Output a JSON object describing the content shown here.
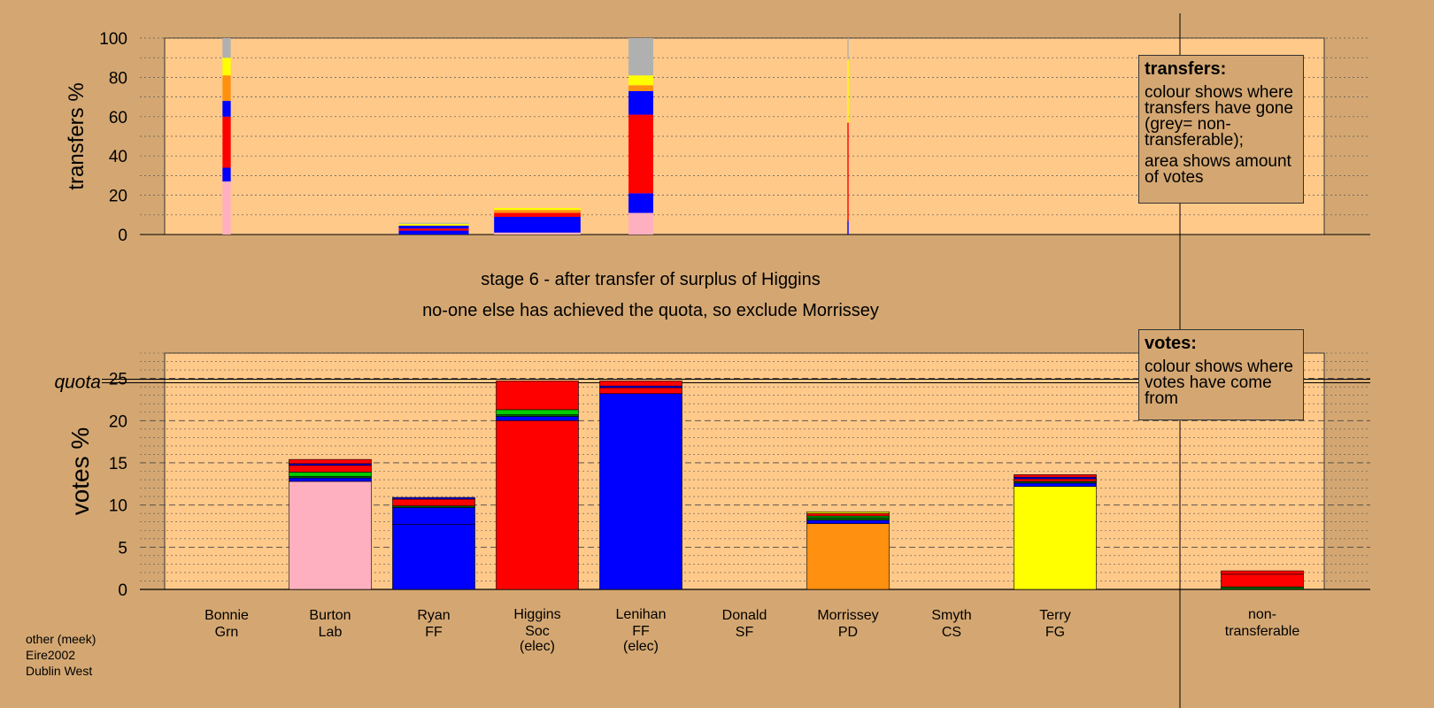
{
  "chart_data": {
    "type": "bar",
    "colors": {
      "Grn": "#00cc00",
      "Lab": "#ffb0c0",
      "FF": "#0000ff",
      "Soc": "#ff0000",
      "SF": "#006400",
      "PD": "#ff9010",
      "CS": "#7030a0",
      "FG": "#ffff00",
      "non-transferable": "#b0b0b0"
    },
    "candidates": [
      {
        "name": "Bonnie",
        "party": "Grn",
        "status": ""
      },
      {
        "name": "Burton",
        "party": "Lab",
        "status": ""
      },
      {
        "name": "Ryan",
        "party": "FF",
        "status": ""
      },
      {
        "name": "Higgins",
        "party": "Soc",
        "status": "(elec)"
      },
      {
        "name": "Lenihan",
        "party": "FF",
        "status": "(elec)"
      },
      {
        "name": "Donald",
        "party": "SF",
        "status": ""
      },
      {
        "name": "Morrissey",
        "party": "PD",
        "status": ""
      },
      {
        "name": "Smyth",
        "party": "CS",
        "status": ""
      },
      {
        "name": "Terry",
        "party": "FG",
        "status": ""
      }
    ],
    "nontransferable_label": [
      "non-",
      "transferable"
    ],
    "transfers": {
      "ylabel": "transfers %",
      "ylim": [
        0,
        100
      ],
      "ticks": [
        0,
        20,
        40,
        60,
        80,
        100
      ],
      "columns": [
        {
          "candidate": "Bonnie",
          "width": 1.0,
          "segments": [
            {
              "source": "Lab",
              "value": 27
            },
            {
              "source": "FF",
              "value": 7
            },
            {
              "source": "Soc",
              "value": 26
            },
            {
              "source": "FF",
              "value": 8
            },
            {
              "source": "PD",
              "value": 13
            },
            {
              "source": "FG",
              "value": 9
            },
            {
              "source": "non-transferable",
              "value": 10
            }
          ]
        },
        {
          "candidate": "Ryan",
          "width": 8.5,
          "segments": [
            {
              "source": "FF",
              "value": 2
            },
            {
              "source": "Soc",
              "value": 1
            },
            {
              "source": "FF",
              "value": 1.5
            },
            {
              "source": "FG",
              "value": 1
            },
            {
              "source": "non-transferable",
              "value": 0.5
            }
          ]
        },
        {
          "candidate": "Higgins",
          "width": 10.5,
          "segments": [
            {
              "source": "Lab",
              "value": 1
            },
            {
              "source": "FF",
              "value": 8
            },
            {
              "source": "Soc",
              "value": 2
            },
            {
              "source": "PD",
              "value": 1.5
            },
            {
              "source": "FG",
              "value": 1
            }
          ]
        },
        {
          "candidate": "Lenihan",
          "width": 3.0,
          "segments": [
            {
              "source": "Lab",
              "value": 11
            },
            {
              "source": "FF",
              "value": 10
            },
            {
              "source": "Soc",
              "value": 40
            },
            {
              "source": "FF",
              "value": 12
            },
            {
              "source": "PD",
              "value": 3
            },
            {
              "source": "FG",
              "value": 5
            },
            {
              "source": "non-transferable",
              "value": 19
            }
          ]
        },
        {
          "candidate": "Morrissey",
          "width": 0.15,
          "segments": [
            {
              "source": "FF",
              "value": 7
            },
            {
              "source": "Soc",
              "value": 50
            },
            {
              "source": "FG",
              "value": 32
            },
            {
              "source": "non-transferable",
              "value": 11
            }
          ]
        }
      ]
    },
    "votes": {
      "ylabel": "votes %",
      "ylim": [
        0,
        28
      ],
      "ticks": [
        0,
        5,
        10,
        15,
        20,
        25
      ],
      "quota": 24.7,
      "quota_label": "quota",
      "bars": [
        {
          "candidate": "Burton",
          "segments": [
            {
              "source": "Lab",
              "value": 12.8
            },
            {
              "source": "FF",
              "value": 0.4
            },
            {
              "source": "SF",
              "value": 0.2
            },
            {
              "source": "Grn",
              "value": 0.5
            },
            {
              "source": "Soc",
              "value": 0.8
            },
            {
              "source": "FF",
              "value": 0.2
            },
            {
              "source": "Soc",
              "value": 0.5
            }
          ]
        },
        {
          "candidate": "Ryan",
          "segments": [
            {
              "source": "FF",
              "value": 7.7
            },
            {
              "source": "FF",
              "value": 2.0
            },
            {
              "source": "SF",
              "value": 0.2
            },
            {
              "source": "Soc",
              "value": 0.8
            },
            {
              "source": "FF",
              "value": 0.2
            }
          ]
        },
        {
          "candidate": "Higgins",
          "segments": [
            {
              "source": "Soc",
              "value": 20.0
            },
            {
              "source": "FF",
              "value": 0.5
            },
            {
              "source": "SF",
              "value": 0.2
            },
            {
              "source": "Grn",
              "value": 0.6
            },
            {
              "source": "Soc",
              "value": 3.4
            }
          ]
        },
        {
          "candidate": "Lenihan",
          "segments": [
            {
              "source": "FF",
              "value": 23.2
            },
            {
              "source": "Soc",
              "value": 0.7
            },
            {
              "source": "FF",
              "value": 0.2
            },
            {
              "source": "Soc",
              "value": 0.6
            }
          ]
        },
        {
          "candidate": "Morrissey",
          "segments": [
            {
              "source": "PD",
              "value": 7.8
            },
            {
              "source": "FF",
              "value": 0.4
            },
            {
              "source": "SF",
              "value": 0.3
            },
            {
              "source": "Grn",
              "value": 0.2
            },
            {
              "source": "Soc",
              "value": 0.3
            },
            {
              "source": "FG",
              "value": 0.2
            }
          ]
        },
        {
          "candidate": "Terry",
          "segments": [
            {
              "source": "FG",
              "value": 12.2
            },
            {
              "source": "FF",
              "value": 0.4
            },
            {
              "source": "SF",
              "value": 0.2
            },
            {
              "source": "Soc",
              "value": 0.3
            },
            {
              "source": "FF",
              "value": 0.2
            },
            {
              "source": "Soc",
              "value": 0.3
            }
          ]
        },
        {
          "candidate": "non-transferable",
          "segments": [
            {
              "source": "SF",
              "value": 0.3
            },
            {
              "source": "Soc",
              "value": 1.5
            },
            {
              "source": "Soc",
              "value": 0.4
            }
          ]
        }
      ]
    }
  },
  "stage": {
    "line1": "stage 6 - after transfer of surplus of Higgins",
    "line2": "no-one else has achieved the quota, so exclude Morrissey"
  },
  "legend_transfers": {
    "title": "transfers:",
    "text1": "colour shows where transfers have gone (grey= non-transferable);",
    "text2": "area shows amount of votes"
  },
  "legend_votes": {
    "title": "votes:",
    "text1": "colour shows where votes have come from"
  },
  "footer": {
    "line1": "other (meek)",
    "line2": "Eire2002",
    "line3": "Dublin West"
  }
}
